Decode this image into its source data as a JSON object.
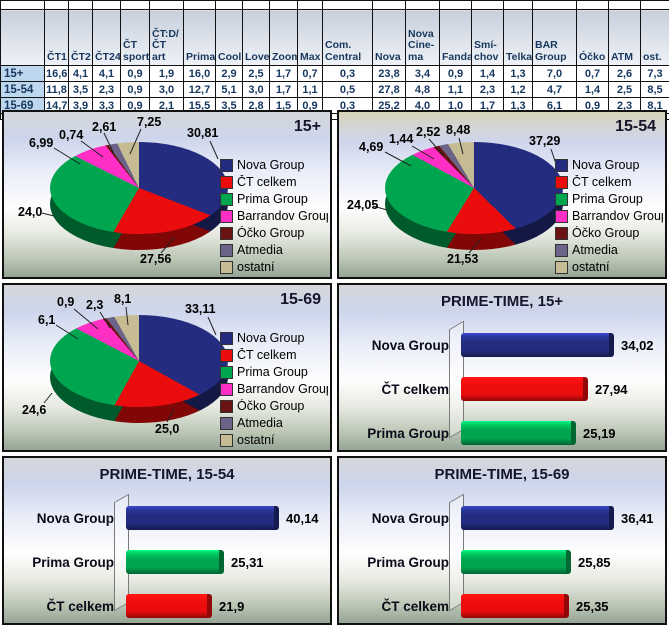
{
  "table": {
    "columns": [
      "ČT1",
      "ČT2",
      "ČT24",
      "ČT\nsport",
      "ČT:D/\nČT art",
      "Prima",
      "Cool",
      "Love",
      "Zoom",
      "Max",
      "Com.\nCentral",
      "Nova",
      "Nova\nCine-\nma",
      "Fanda",
      "Smí-\nchov",
      "Telka",
      "BAR\nGroup",
      "Óčko",
      "ATM",
      "ost."
    ],
    "rows": [
      {
        "label": "15+",
        "values": [
          "16,6",
          "4,1",
          "4,1",
          "0,9",
          "1,9",
          "16,0",
          "2,9",
          "2,5",
          "1,7",
          "0,7",
          "0,3",
          "23,8",
          "3,4",
          "0,9",
          "1,4",
          "1,3",
          "7,0",
          "0,7",
          "2,6",
          "7,3"
        ]
      },
      {
        "label": "15-54",
        "values": [
          "11,8",
          "3,5",
          "2,3",
          "0,9",
          "3,0",
          "12,7",
          "5,1",
          "3,0",
          "1,7",
          "1,1",
          "0,5",
          "27,8",
          "4,8",
          "1,1",
          "2,3",
          "1,2",
          "4,7",
          "1,4",
          "2,5",
          "8,5"
        ]
      },
      {
        "label": "15-69",
        "values": [
          "14,7",
          "3,9",
          "3,3",
          "0,9",
          "2,1",
          "15,5",
          "3,5",
          "2,8",
          "1,5",
          "0,9",
          "0,3",
          "25,2",
          "4,0",
          "1,0",
          "1,7",
          "1,3",
          "6,1",
          "0,9",
          "2,3",
          "8,1"
        ]
      }
    ]
  },
  "chart_data": [
    {
      "type": "pie",
      "title": "15+",
      "legend_position": "right",
      "slices": [
        {
          "name": "Nova Group",
          "value": "30,81",
          "color": "#232C7E"
        },
        {
          "name": "ČT celkem",
          "value": "27,56",
          "color": "#EB0D0D"
        },
        {
          "name": "Prima Group",
          "value": "24,0",
          "color": "#00A550"
        },
        {
          "name": "Barrandov Group",
          "value": "6,99",
          "color": "#FF2EC4"
        },
        {
          "name": "Óčko Group",
          "value": "0,74",
          "color": "#6B1212"
        },
        {
          "name": "Atmedia",
          "value": "2,61",
          "color": "#6C6388"
        },
        {
          "name": "ostatní",
          "value": "7,25",
          "color": "#C6BC94"
        }
      ]
    },
    {
      "type": "pie",
      "title": "15-54",
      "legend_position": "right",
      "slices": [
        {
          "name": "Nova Group",
          "value": "37,29",
          "color": "#232C7E"
        },
        {
          "name": "ČT celkem",
          "value": "21,53",
          "color": "#EB0D0D"
        },
        {
          "name": "Prima Group",
          "value": "24,05",
          "color": "#00A550"
        },
        {
          "name": "Barrandov Group",
          "value": "4,69",
          "color": "#FF2EC4"
        },
        {
          "name": "Óčko Group",
          "value": "1,44",
          "color": "#6B1212"
        },
        {
          "name": "Atmedia",
          "value": "2,52",
          "color": "#6C6388"
        },
        {
          "name": "ostatní",
          "value": "8,48",
          "color": "#C6BC94"
        }
      ]
    },
    {
      "type": "pie",
      "title": "15-69",
      "legend_position": "right",
      "slices": [
        {
          "name": "Nova Group",
          "value": "33,11",
          "color": "#232C7E"
        },
        {
          "name": "ČT celkem",
          "value": "25,0",
          "color": "#EB0D0D"
        },
        {
          "name": "Prima Group",
          "value": "24,6",
          "color": "#00A550"
        },
        {
          "name": "Barrandov Group",
          "value": "6,1",
          "color": "#FF2EC4"
        },
        {
          "name": "Óčko Group",
          "value": "0,9",
          "color": "#6B1212"
        },
        {
          "name": "Atmedia",
          "value": "2,3",
          "color": "#6C6388"
        },
        {
          "name": "ostatní",
          "value": "8,1",
          "color": "#C6BC94"
        }
      ]
    },
    {
      "type": "bar",
      "title": "PRIME-TIME, 15+",
      "items": [
        {
          "name": "Nova Group",
          "value": "34,02",
          "color": "#232C7E"
        },
        {
          "name": "ČT celkem",
          "value": "27,94",
          "color": "#EB0D0D"
        },
        {
          "name": "Prima Group",
          "value": "25,19",
          "color": "#00A550"
        }
      ]
    },
    {
      "type": "bar",
      "title": "PRIME-TIME, 15-54",
      "items": [
        {
          "name": "Nova Group",
          "value": "40,14",
          "color": "#232C7E"
        },
        {
          "name": "Prima Group",
          "value": "25,31",
          "color": "#00A550"
        },
        {
          "name": "ČT celkem",
          "value": "21,9",
          "color": "#EB0D0D"
        }
      ]
    },
    {
      "type": "bar",
      "title": "PRIME-TIME, 15-69",
      "items": [
        {
          "name": "Nova Group",
          "value": "36,41",
          "color": "#232C7E"
        },
        {
          "name": "Prima Group",
          "value": "25,85",
          "color": "#00A550"
        },
        {
          "name": "ČT celkem",
          "value": "25,35",
          "color": "#EB0D0D"
        }
      ]
    }
  ]
}
